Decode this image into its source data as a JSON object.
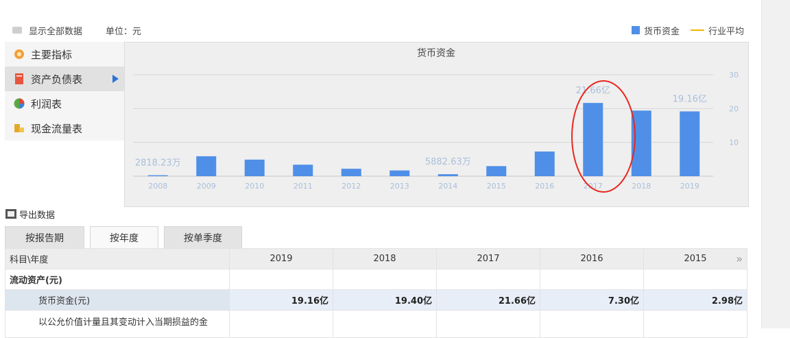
{
  "topbar": {
    "show_all": "显示全部数据",
    "unit": "单位：元"
  },
  "legend": {
    "series1": "货币资金",
    "series2": "行业平均",
    "series1_color": "#4f8fe8",
    "series2_color": "#f5b400"
  },
  "sidebar": {
    "items": [
      {
        "label": "主要指标",
        "icon": "gear-flower-icon"
      },
      {
        "label": "资产负债表",
        "icon": "document-icon",
        "active": true
      },
      {
        "label": "利润表",
        "icon": "pie-icon"
      },
      {
        "label": "现金流量表",
        "icon": "coins-icon"
      }
    ]
  },
  "chart_data": {
    "type": "bar",
    "title": "货币资金",
    "categories": [
      "2008",
      "2009",
      "2010",
      "2011",
      "2012",
      "2013",
      "2014",
      "2015",
      "2016",
      "2017",
      "2018",
      "2019"
    ],
    "series": [
      {
        "name": "货币资金",
        "values": [
          0.28,
          5.9,
          4.9,
          3.4,
          2.2,
          1.7,
          0.59,
          2.98,
          7.3,
          21.66,
          19.4,
          19.16
        ]
      }
    ],
    "value_labels": {
      "0": "2818.23万",
      "6": "5882.63万",
      "9": "21.66亿",
      "11": "19.16亿"
    },
    "yticks": [
      "10",
      "20",
      "30"
    ],
    "ylim": [
      0,
      30
    ],
    "highlight_category": "2017",
    "bar_color": "#4f8fe8"
  },
  "export": {
    "label": "导出数据"
  },
  "tabs": [
    {
      "label": "按报告期"
    },
    {
      "label": "按年度",
      "active": true
    },
    {
      "label": "按单季度"
    }
  ],
  "table": {
    "header": [
      "科目\\年度",
      "2019",
      "2018",
      "2017",
      "2016",
      "2015"
    ],
    "more": "»",
    "rows": [
      {
        "cells": [
          "流动资产(元)",
          "",
          "",
          "",
          "",
          ""
        ]
      },
      {
        "cells": [
          "货币资金(元)",
          "19.16亿",
          "19.40亿",
          "21.66亿",
          "7.30亿",
          "2.98亿"
        ]
      },
      {
        "cells": [
          "以公允价值计量且其变动计入当期损益的金",
          "",
          "",
          "",
          "",
          ""
        ]
      }
    ]
  }
}
